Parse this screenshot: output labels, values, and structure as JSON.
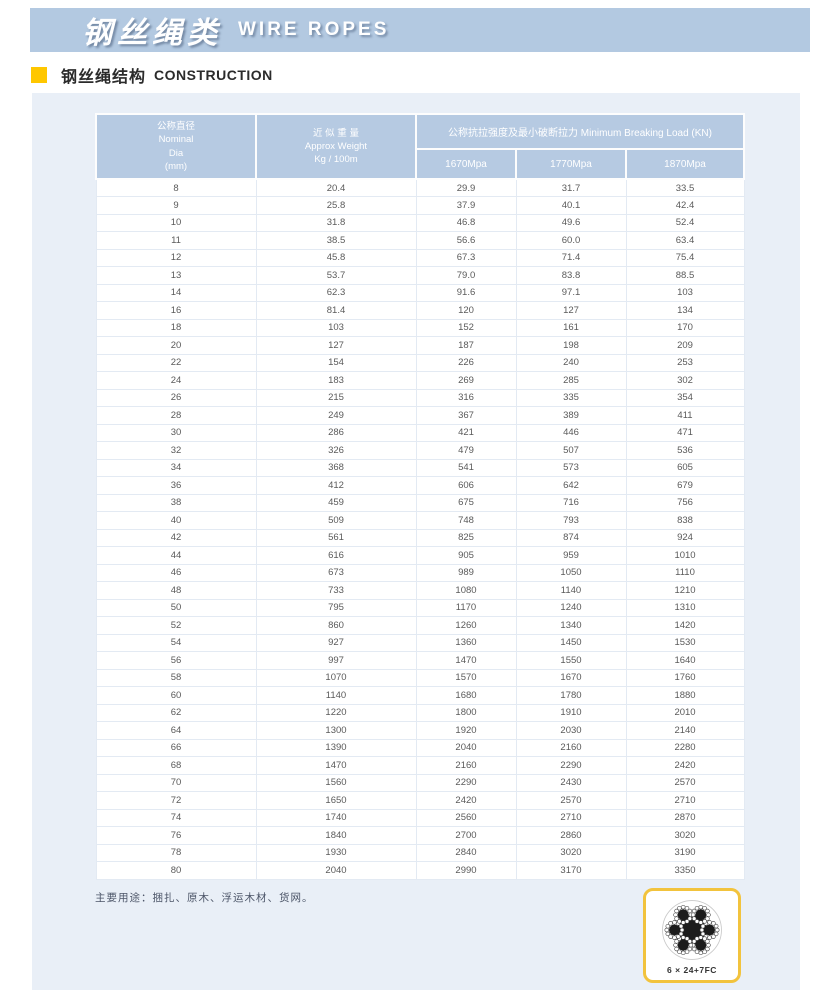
{
  "header": {
    "title_zh": "钢丝绳类",
    "title_en": "WIRE ROPES"
  },
  "section": {
    "title_zh": "钢丝绳结构",
    "title_en": "CONSTRUCTION"
  },
  "table": {
    "col1_lines": [
      "公称直径",
      "Nominal",
      "Dia",
      "(mm)"
    ],
    "col2_lines": [
      "近 似 重 量",
      "Approx Weight",
      "Kg / 100m"
    ],
    "group_header": "公称抗拉强度及最小破断拉力 Minimum Breaking Load (KN)",
    "subcols": [
      "1670Mpa",
      "1770Mpa",
      "1870Mpa"
    ],
    "rows": [
      [
        "8",
        "20.4",
        "29.9",
        "31.7",
        "33.5"
      ],
      [
        "9",
        "25.8",
        "37.9",
        "40.1",
        "42.4"
      ],
      [
        "10",
        "31.8",
        "46.8",
        "49.6",
        "52.4"
      ],
      [
        "11",
        "38.5",
        "56.6",
        "60.0",
        "63.4"
      ],
      [
        "12",
        "45.8",
        "67.3",
        "71.4",
        "75.4"
      ],
      [
        "13",
        "53.7",
        "79.0",
        "83.8",
        "88.5"
      ],
      [
        "14",
        "62.3",
        "91.6",
        "97.1",
        "103"
      ],
      [
        "16",
        "81.4",
        "120",
        "127",
        "134"
      ],
      [
        "18",
        "103",
        "152",
        "161",
        "170"
      ],
      [
        "20",
        "127",
        "187",
        "198",
        "209"
      ],
      [
        "22",
        "154",
        "226",
        "240",
        "253"
      ],
      [
        "24",
        "183",
        "269",
        "285",
        "302"
      ],
      [
        "26",
        "215",
        "316",
        "335",
        "354"
      ],
      [
        "28",
        "249",
        "367",
        "389",
        "411"
      ],
      [
        "30",
        "286",
        "421",
        "446",
        "471"
      ],
      [
        "32",
        "326",
        "479",
        "507",
        "536"
      ],
      [
        "34",
        "368",
        "541",
        "573",
        "605"
      ],
      [
        "36",
        "412",
        "606",
        "642",
        "679"
      ],
      [
        "38",
        "459",
        "675",
        "716",
        "756"
      ],
      [
        "40",
        "509",
        "748",
        "793",
        "838"
      ],
      [
        "42",
        "561",
        "825",
        "874",
        "924"
      ],
      [
        "44",
        "616",
        "905",
        "959",
        "1010"
      ],
      [
        "46",
        "673",
        "989",
        "1050",
        "1110"
      ],
      [
        "48",
        "733",
        "1080",
        "1140",
        "1210"
      ],
      [
        "50",
        "795",
        "1170",
        "1240",
        "1310"
      ],
      [
        "52",
        "860",
        "1260",
        "1340",
        "1420"
      ],
      [
        "54",
        "927",
        "1360",
        "1450",
        "1530"
      ],
      [
        "56",
        "997",
        "1470",
        "1550",
        "1640"
      ],
      [
        "58",
        "1070",
        "1570",
        "1670",
        "1760"
      ],
      [
        "60",
        "1140",
        "1680",
        "1780",
        "1880"
      ],
      [
        "62",
        "1220",
        "1800",
        "1910",
        "2010"
      ],
      [
        "64",
        "1300",
        "1920",
        "2030",
        "2140"
      ],
      [
        "66",
        "1390",
        "2040",
        "2160",
        "2280"
      ],
      [
        "68",
        "1470",
        "2160",
        "2290",
        "2420"
      ],
      [
        "70",
        "1560",
        "2290",
        "2430",
        "2570"
      ],
      [
        "72",
        "1650",
        "2420",
        "2570",
        "2710"
      ],
      [
        "74",
        "1740",
        "2560",
        "2710",
        "2870"
      ],
      [
        "76",
        "1840",
        "2700",
        "2860",
        "3020"
      ],
      [
        "78",
        "1930",
        "2840",
        "3020",
        "3190"
      ],
      [
        "80",
        "2040",
        "2990",
        "3170",
        "3350"
      ]
    ]
  },
  "footnote": "主要用途：捆扎、原木、浮运木材、货网。",
  "diagram": {
    "label": "6 × 24+7FC"
  },
  "colors": {
    "band_blue": "#b3c9e1",
    "panel_blue": "#e9eff7",
    "header_cell_blue": "#b6cae2",
    "accent_yellow": "#ffc700",
    "diagram_border": "#f2c33d"
  }
}
